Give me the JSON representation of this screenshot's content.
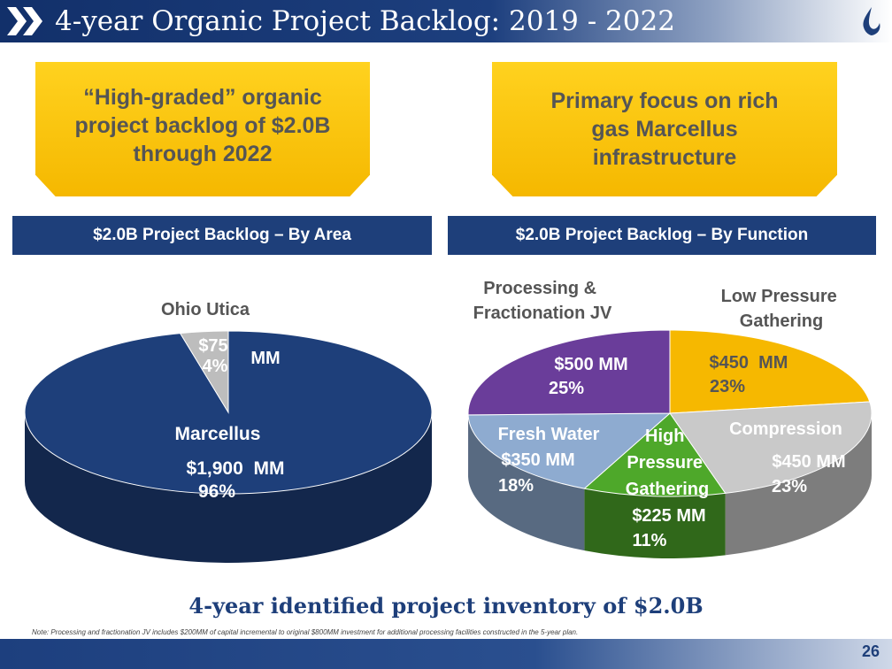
{
  "header": {
    "title": "4-year Organic Project Backlog: 2019 - 2022",
    "page_number": "26"
  },
  "callouts": [
    {
      "lines": [
        "“High-graded” organic",
        "project backlog of $2.0B",
        "through 2022"
      ]
    },
    {
      "lines": [
        "Primary focus on rich",
        "gas Marcellus",
        "infrastructure"
      ]
    }
  ],
  "section_bars": {
    "by_area": "$2.0B Project Backlog – By Area",
    "by_function": "$2.0B Project Backlog – By Function"
  },
  "chart_data": [
    {
      "type": "pie",
      "title": "$2.0B Project Backlog – By Area",
      "slices": [
        {
          "label": "Marcellus",
          "value": 1900,
          "value_text": "$1,900  MM",
          "percent": 96,
          "percent_text": "96%",
          "color": "#1e3f7a"
        },
        {
          "label": "Ohio Utica",
          "value": 75,
          "value_text": "$75",
          "unit_text": "MM",
          "percent": 4,
          "percent_text": "4%",
          "color": "#bdbdbd"
        }
      ]
    },
    {
      "type": "pie",
      "title": "$2.0B Project Backlog – By Function",
      "slices": [
        {
          "label": "Low Pressure Gathering",
          "label_lines": [
            "Low Pressure",
            "Gathering"
          ],
          "value": 450,
          "value_text": "$450  MM",
          "percent": 23,
          "percent_text": "23%",
          "color": "#f6b800"
        },
        {
          "label": "Compression",
          "label_lines": [
            "Compression"
          ],
          "value": 450,
          "value_text": "$450 MM",
          "percent": 23,
          "percent_text": "23%",
          "color": "#c9c9c9"
        },
        {
          "label": "High Pressure Gathering",
          "label_lines": [
            "High",
            "Pressure",
            "Gathering"
          ],
          "value": 225,
          "value_text": "$225 MM",
          "percent": 11,
          "percent_text": "11%",
          "color": "#4ea82a"
        },
        {
          "label": "Fresh Water",
          "label_lines": [
            "Fresh Water"
          ],
          "value": 350,
          "value_text": "$350 MM",
          "percent": 18,
          "percent_text": "18%",
          "color": "#8eabd0"
        },
        {
          "label": "Processing & Fractionation JV",
          "label_lines": [
            "Processing &",
            "Fractionation JV"
          ],
          "value": 500,
          "value_text": "$500 MM",
          "percent": 25,
          "percent_text": "25%",
          "color": "#6a3d9a"
        }
      ]
    }
  ],
  "summary": "4-year identified project inventory of $2.0B",
  "note": "Note: Processing and fractionation JV includes $200MM of capital incremental to original $800MM investment for additional processing facilities constructed in the 5-year plan."
}
